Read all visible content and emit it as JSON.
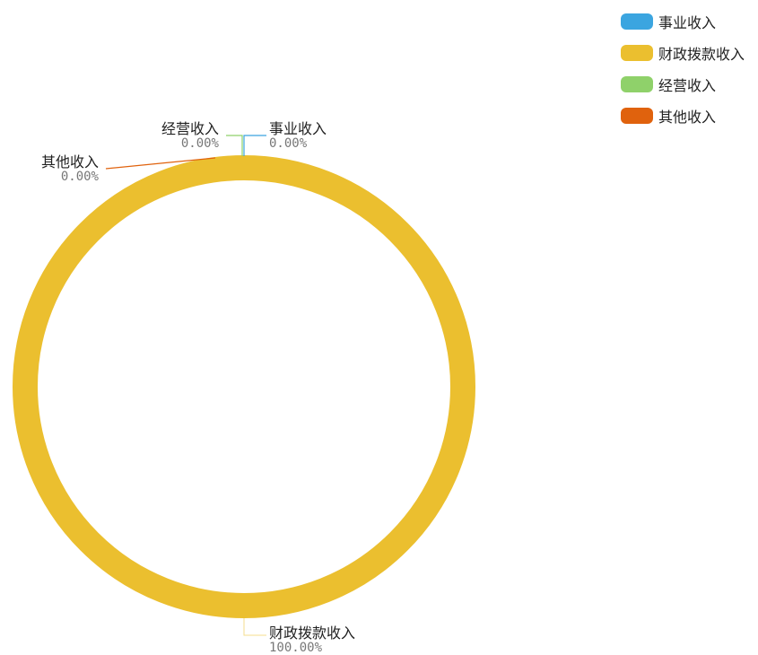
{
  "chart_data": {
    "type": "pie",
    "style": "donut",
    "slices": [
      {
        "label": "事业收入",
        "value": 0,
        "percent_label": "0.00%",
        "color": "#3ba5e0"
      },
      {
        "label": "财政拨款收入",
        "value": 100,
        "percent_label": "100.00%",
        "color": "#ebbf2f"
      },
      {
        "label": "经营收入",
        "value": 0,
        "percent_label": "0.00%",
        "color": "#8fd16a"
      },
      {
        "label": "其他收入",
        "value": 0,
        "percent_label": "0.00%",
        "color": "#e0620d"
      }
    ],
    "legend_placement": "top-right"
  }
}
